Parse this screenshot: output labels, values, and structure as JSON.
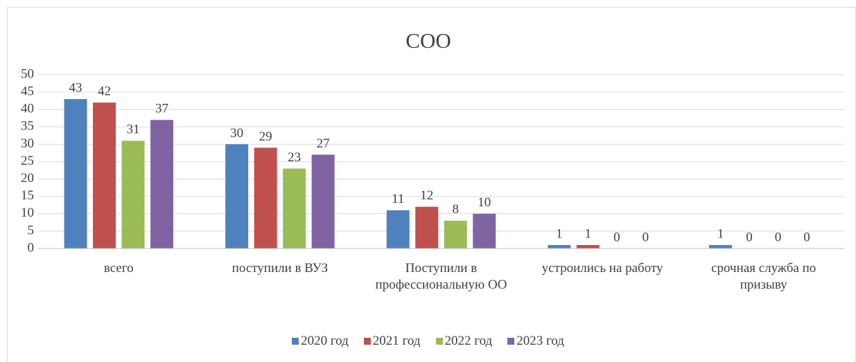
{
  "chart_data": {
    "type": "bar",
    "title": "СОО",
    "categories": [
      "всего",
      "поступили в ВУЗ",
      "Поступили в профессиональную ОО",
      "устроились на работу",
      "срочная служба по призыву"
    ],
    "series": [
      {
        "name": "2020 год",
        "color": "#4f81bd",
        "values": [
          43,
          30,
          11,
          1,
          1
        ]
      },
      {
        "name": "2021 год",
        "color": "#c0504d",
        "values": [
          42,
          29,
          12,
          1,
          0
        ]
      },
      {
        "name": "2022 год",
        "color": "#9bbb59",
        "values": [
          31,
          23,
          8,
          0,
          0
        ]
      },
      {
        "name": "2023 год",
        "color": "#8064a2",
        "values": [
          37,
          27,
          10,
          0,
          0
        ]
      }
    ],
    "ylim": [
      0,
      50
    ],
    "yticks": [
      0,
      5,
      10,
      15,
      20,
      25,
      30,
      35,
      40,
      45,
      50
    ],
    "grid": true,
    "legend": "bottom"
  }
}
